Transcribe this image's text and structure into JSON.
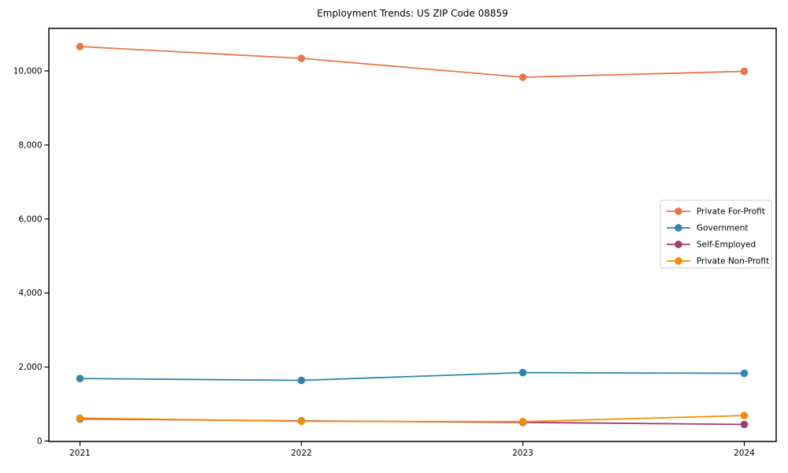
{
  "chart_data": {
    "type": "line",
    "title": "Employment Trends: US ZIP Code 08859",
    "xlabel": "",
    "ylabel": "",
    "categories": [
      "2021",
      "2022",
      "2023",
      "2024"
    ],
    "series": [
      {
        "name": "Private For-Profit",
        "color": "#E8764B",
        "values": [
          10660,
          10340,
          9830,
          9990
        ]
      },
      {
        "name": "Government",
        "color": "#2E86AB",
        "values": [
          1690,
          1640,
          1850,
          1830
        ]
      },
      {
        "name": "Self-Employed",
        "color": "#A23B72",
        "values": [
          600,
          545,
          505,
          450
        ]
      },
      {
        "name": "Private Non-Profit",
        "color": "#F18F01",
        "values": [
          620,
          535,
          525,
          690
        ]
      }
    ],
    "ylim": [
      0,
      11150
    ],
    "yticks": [
      0,
      2000,
      4000,
      6000,
      8000,
      10000
    ],
    "ytick_labels": [
      "0",
      "2,000",
      "4,000",
      "6,000",
      "8,000",
      "10,000"
    ],
    "grid": false,
    "legend_position": "center right",
    "marker": "circle",
    "spine_color": "#000000",
    "legend_border_color": "#cccccc"
  }
}
